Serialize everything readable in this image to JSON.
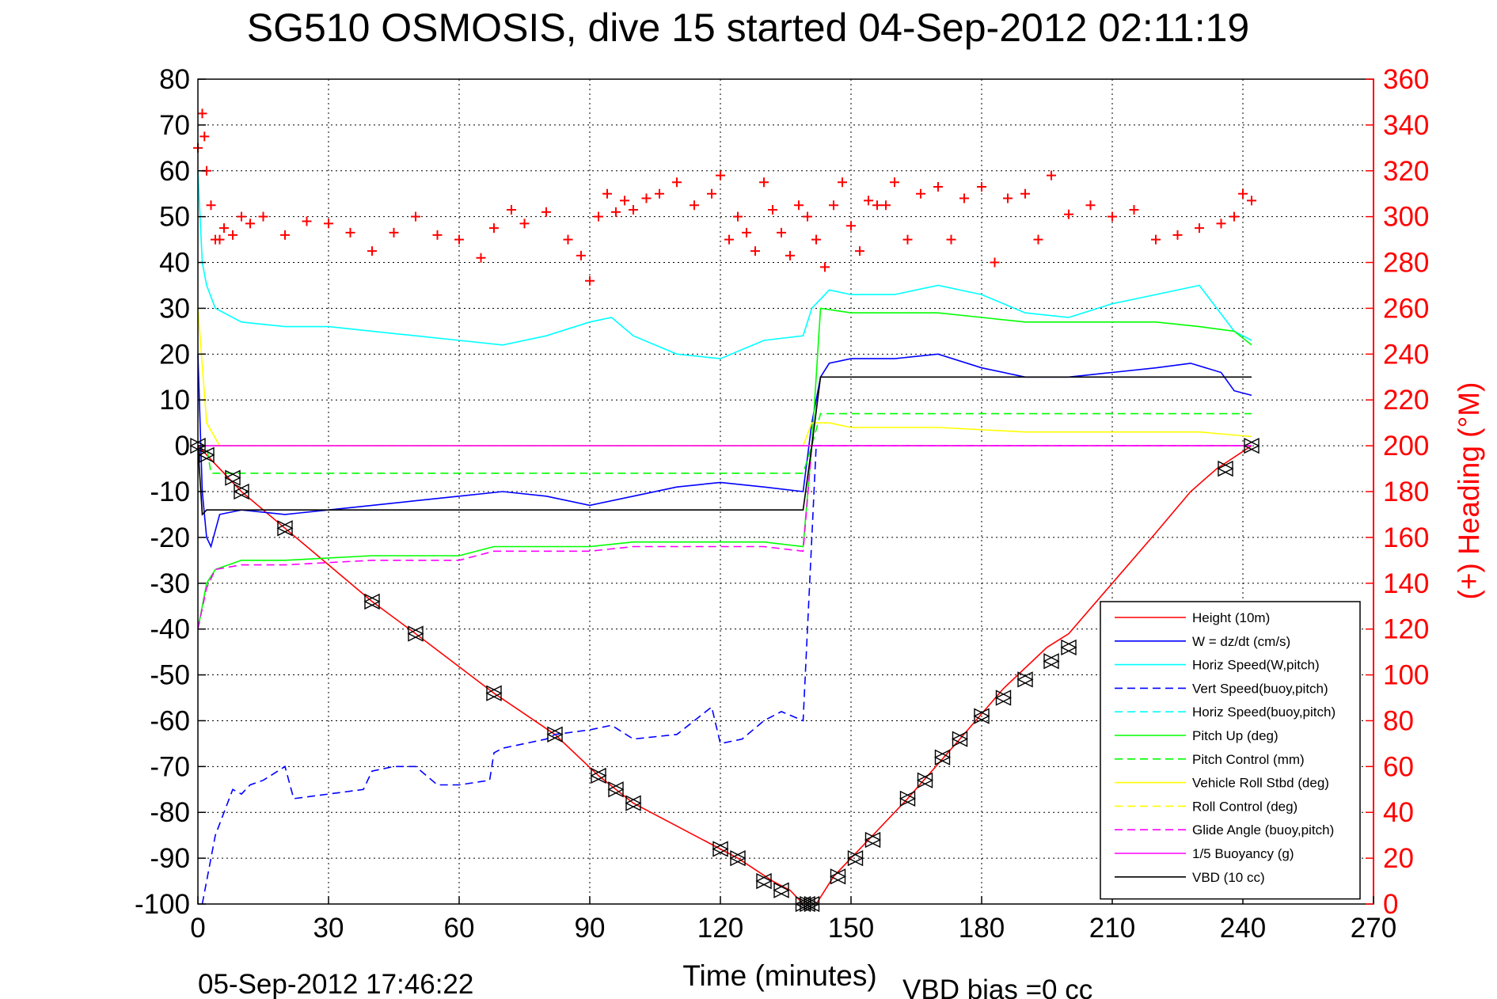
{
  "chart_data": {
    "type": "line",
    "title": "SG510 OSMOSIS, dive 15 started 04-Sep-2012 02:11:19",
    "xlabel": "Time (minutes)",
    "ylabel_right": "(+) Heading (°M)",
    "footer_left": "05-Sep-2012 17:46:22",
    "footer_right": "VBD bias =0 cc",
    "xlim": [
      0,
      270
    ],
    "ylim": [
      -100,
      80
    ],
    "ylim_right": [
      0,
      360
    ],
    "xticks": [
      "0",
      "30",
      "60",
      "90",
      "120",
      "150",
      "180",
      "210",
      "240",
      "270"
    ],
    "yticks": [
      "80",
      "70",
      "60",
      "50",
      "40",
      "30",
      "20",
      "10",
      "0",
      "-10",
      "-20",
      "-30",
      "-40",
      "-50",
      "-60",
      "-70",
      "-80",
      "-90",
      "-100"
    ],
    "yticks_right": [
      "360",
      "340",
      "320",
      "300",
      "280",
      "260",
      "240",
      "220",
      "200",
      "180",
      "160",
      "140",
      "120",
      "100",
      "80",
      "60",
      "40",
      "20",
      "0"
    ],
    "grid": true,
    "legend_position": "bottom-right",
    "series": [
      {
        "name": "Height (10m)",
        "color": "#ff0000",
        "style": "solid",
        "x": [
          0,
          10,
          20,
          40,
          50,
          68,
          82,
          92,
          100,
          120,
          124,
          132,
          136,
          139,
          142,
          146,
          150,
          154,
          163,
          175,
          185,
          195,
          200,
          210,
          220,
          228,
          234,
          242
        ],
        "y": [
          0,
          -10,
          -18,
          -34,
          -41,
          -54,
          -63,
          -72,
          -78,
          -88,
          -90,
          -95,
          -97,
          -100,
          -100,
          -94,
          -90,
          -86,
          -77,
          -64,
          -53,
          -44,
          -41,
          -30,
          -19,
          -10,
          -5,
          0
        ]
      },
      {
        "name": "W = dz/dt (cm/s)",
        "color": "#0000ff",
        "style": "solid",
        "x": [
          0,
          1,
          2,
          3,
          5,
          10,
          20,
          30,
          40,
          50,
          60,
          70,
          80,
          90,
          100,
          110,
          120,
          130,
          139,
          141,
          143,
          145,
          150,
          160,
          170,
          180,
          190,
          200,
          210,
          220,
          228,
          235,
          238,
          242
        ],
        "y": [
          20,
          -10,
          -20,
          -22,
          -15,
          -14,
          -15,
          -14,
          -13,
          -12,
          -11,
          -10,
          -11,
          -13,
          -11,
          -9,
          -8,
          -9,
          -10,
          5,
          15,
          18,
          19,
          19,
          20,
          17,
          15,
          15,
          16,
          17,
          18,
          16,
          12,
          11
        ]
      },
      {
        "name": "Horiz Speed(W,pitch)",
        "color": "#00ffff",
        "style": "solid",
        "x": [
          0,
          1,
          2,
          4,
          10,
          20,
          30,
          40,
          50,
          60,
          70,
          80,
          90,
          95,
          100,
          110,
          120,
          130,
          139,
          141,
          143,
          145,
          150,
          160,
          170,
          180,
          190,
          200,
          210,
          220,
          230,
          238,
          242
        ],
        "y": [
          60,
          40,
          35,
          30,
          27,
          26,
          26,
          25,
          24,
          23,
          22,
          24,
          27,
          28,
          24,
          20,
          19,
          23,
          24,
          30,
          32,
          34,
          33,
          33,
          35,
          33,
          29,
          28,
          31,
          33,
          35,
          25,
          23
        ]
      },
      {
        "name": "Vert Speed(buoy,pitch)",
        "color": "#0000ff",
        "style": "dashed",
        "x": [
          1,
          3,
          4,
          6,
          8,
          10,
          12,
          15,
          20,
          22,
          30,
          38,
          40,
          45,
          50,
          55,
          60,
          67,
          68,
          70,
          80,
          82,
          90,
          95,
          100,
          110,
          118,
          120,
          125,
          130,
          134,
          139,
          140,
          142,
          145,
          200,
          242
        ],
        "y": [
          -100,
          -90,
          -85,
          -80,
          -75,
          -76,
          -74,
          -73,
          -70,
          -77,
          -76,
          -75,
          -71,
          -70,
          -70,
          -74,
          -74,
          -73,
          -67,
          -66,
          -64,
          -63,
          -62,
          -61,
          -64,
          -63,
          -57,
          -65,
          -64,
          -60,
          -58,
          -60,
          -40,
          0,
          0,
          0,
          0
        ]
      },
      {
        "name": "Horiz Speed(buoy,pitch)",
        "color": "#00ffff",
        "style": "dashed",
        "x": [
          0,
          242
        ],
        "y": [
          0,
          0
        ]
      },
      {
        "name": "Pitch Up (deg)",
        "color": "#00ff00",
        "style": "solid",
        "x": [
          0,
          2,
          4,
          10,
          20,
          40,
          50,
          60,
          68,
          80,
          90,
          100,
          110,
          120,
          130,
          139,
          141,
          143,
          150,
          160,
          170,
          180,
          190,
          200,
          210,
          220,
          230,
          238,
          242
        ],
        "y": [
          -40,
          -30,
          -27,
          -25,
          -25,
          -24,
          -24,
          -24,
          -22,
          -22,
          -22,
          -21,
          -21,
          -21,
          -21,
          -22,
          0,
          30,
          29,
          29,
          29,
          28,
          27,
          27,
          27,
          27,
          26,
          25,
          22
        ]
      },
      {
        "name": "Pitch Control (mm)",
        "color": "#00ff00",
        "style": "dashed",
        "x": [
          0,
          2,
          3,
          139,
          141,
          143,
          242
        ],
        "y": [
          0,
          0,
          -6,
          -6,
          0,
          7,
          7
        ]
      },
      {
        "name": "Vehicle Roll Stbd (deg)",
        "color": "#ffff00",
        "style": "solid",
        "x": [
          0,
          2,
          5,
          10,
          20,
          40,
          60,
          80,
          100,
          120,
          139,
          141,
          145,
          150,
          170,
          190,
          210,
          230,
          242
        ],
        "y": [
          30,
          5,
          0,
          0,
          0,
          0,
          0,
          0,
          0,
          0,
          0,
          5,
          5,
          4,
          4,
          3,
          3,
          3,
          2
        ]
      },
      {
        "name": "Roll Control (deg)",
        "color": "#ffff00",
        "style": "dashed",
        "x": [
          0,
          242
        ],
        "y": [
          0,
          0
        ]
      },
      {
        "name": "Glide Angle (buoy,pitch)",
        "color": "#ff00ff",
        "style": "dashed",
        "x": [
          0,
          2,
          4,
          10,
          20,
          40,
          50,
          60,
          68,
          80,
          90,
          100,
          110,
          120,
          130,
          139,
          141,
          143,
          242
        ],
        "y": [
          -40,
          -31,
          -27,
          -26,
          -26,
          -25,
          -25,
          -25,
          -23,
          -23,
          -23,
          -22,
          -22,
          -22,
          -22,
          -23,
          0,
          0,
          0
        ]
      },
      {
        "name": "1/5 Buoyancy (g)",
        "color": "#ff00ff",
        "style": "solid",
        "x": [
          0,
          242
        ],
        "y": [
          0,
          0
        ]
      },
      {
        "name": "VBD (10 cc)",
        "color": "#000000",
        "style": "solid",
        "x": [
          0,
          1,
          2,
          139,
          141,
          143,
          242
        ],
        "y": [
          0,
          -15,
          -14,
          -14,
          0,
          15,
          15
        ]
      }
    ],
    "heading_series": {
      "name": "(+) Heading (°M)",
      "color": "#ff0000",
      "marker": "+",
      "axis": "right",
      "x": [
        0,
        1,
        1.5,
        2,
        3,
        4,
        5,
        6,
        8,
        10,
        12,
        15,
        20,
        25,
        30,
        35,
        40,
        45,
        50,
        55,
        60,
        65,
        68,
        72,
        75,
        80,
        85,
        88,
        90,
        92,
        94,
        96,
        98,
        100,
        103,
        106,
        110,
        114,
        118,
        120,
        122,
        124,
        126,
        128,
        130,
        132,
        134,
        136,
        138,
        140,
        142,
        144,
        146,
        148,
        150,
        152,
        154,
        156,
        158,
        160,
        163,
        166,
        170,
        173,
        176,
        180,
        183,
        186,
        190,
        193,
        196,
        200,
        205,
        210,
        215,
        220,
        225,
        230,
        235,
        238,
        240,
        242
      ],
      "y": [
        330,
        345,
        335,
        320,
        305,
        290,
        290,
        295,
        292,
        300,
        297,
        300,
        292,
        298,
        297,
        293,
        285,
        293,
        300,
        292,
        290,
        282,
        295,
        303,
        297,
        302,
        290,
        283,
        272,
        300,
        310,
        302,
        307,
        303,
        308,
        310,
        315,
        305,
        310,
        318,
        290,
        300,
        293,
        285,
        315,
        303,
        293,
        283,
        305,
        300,
        290,
        278,
        305,
        315,
        296,
        285,
        307,
        305,
        305,
        315,
        290,
        310,
        313,
        290,
        308,
        313,
        280,
        308,
        310,
        290,
        318,
        301,
        305,
        300,
        303,
        290,
        292,
        295,
        297,
        300,
        310,
        307
      ]
    },
    "markers": {
      "symbol": "triangle-star",
      "x": [
        0,
        2,
        8,
        10,
        20,
        40,
        50,
        68,
        82,
        92,
        96,
        100,
        120,
        124,
        130,
        134,
        139,
        140,
        141,
        147,
        151,
        155,
        163,
        167,
        171,
        175,
        180,
        185,
        190,
        196,
        200,
        236,
        242
      ],
      "y": [
        0,
        -2,
        -7,
        -10,
        -18,
        -34,
        -41,
        -54,
        -63,
        -72,
        -75,
        -78,
        -88,
        -90,
        -95,
        -97,
        -100,
        -100,
        -100,
        -94,
        -90,
        -86,
        -77,
        -73,
        -68,
        -64,
        -59,
        -55,
        -51,
        -47,
        -44,
        -5,
        0
      ]
    }
  }
}
